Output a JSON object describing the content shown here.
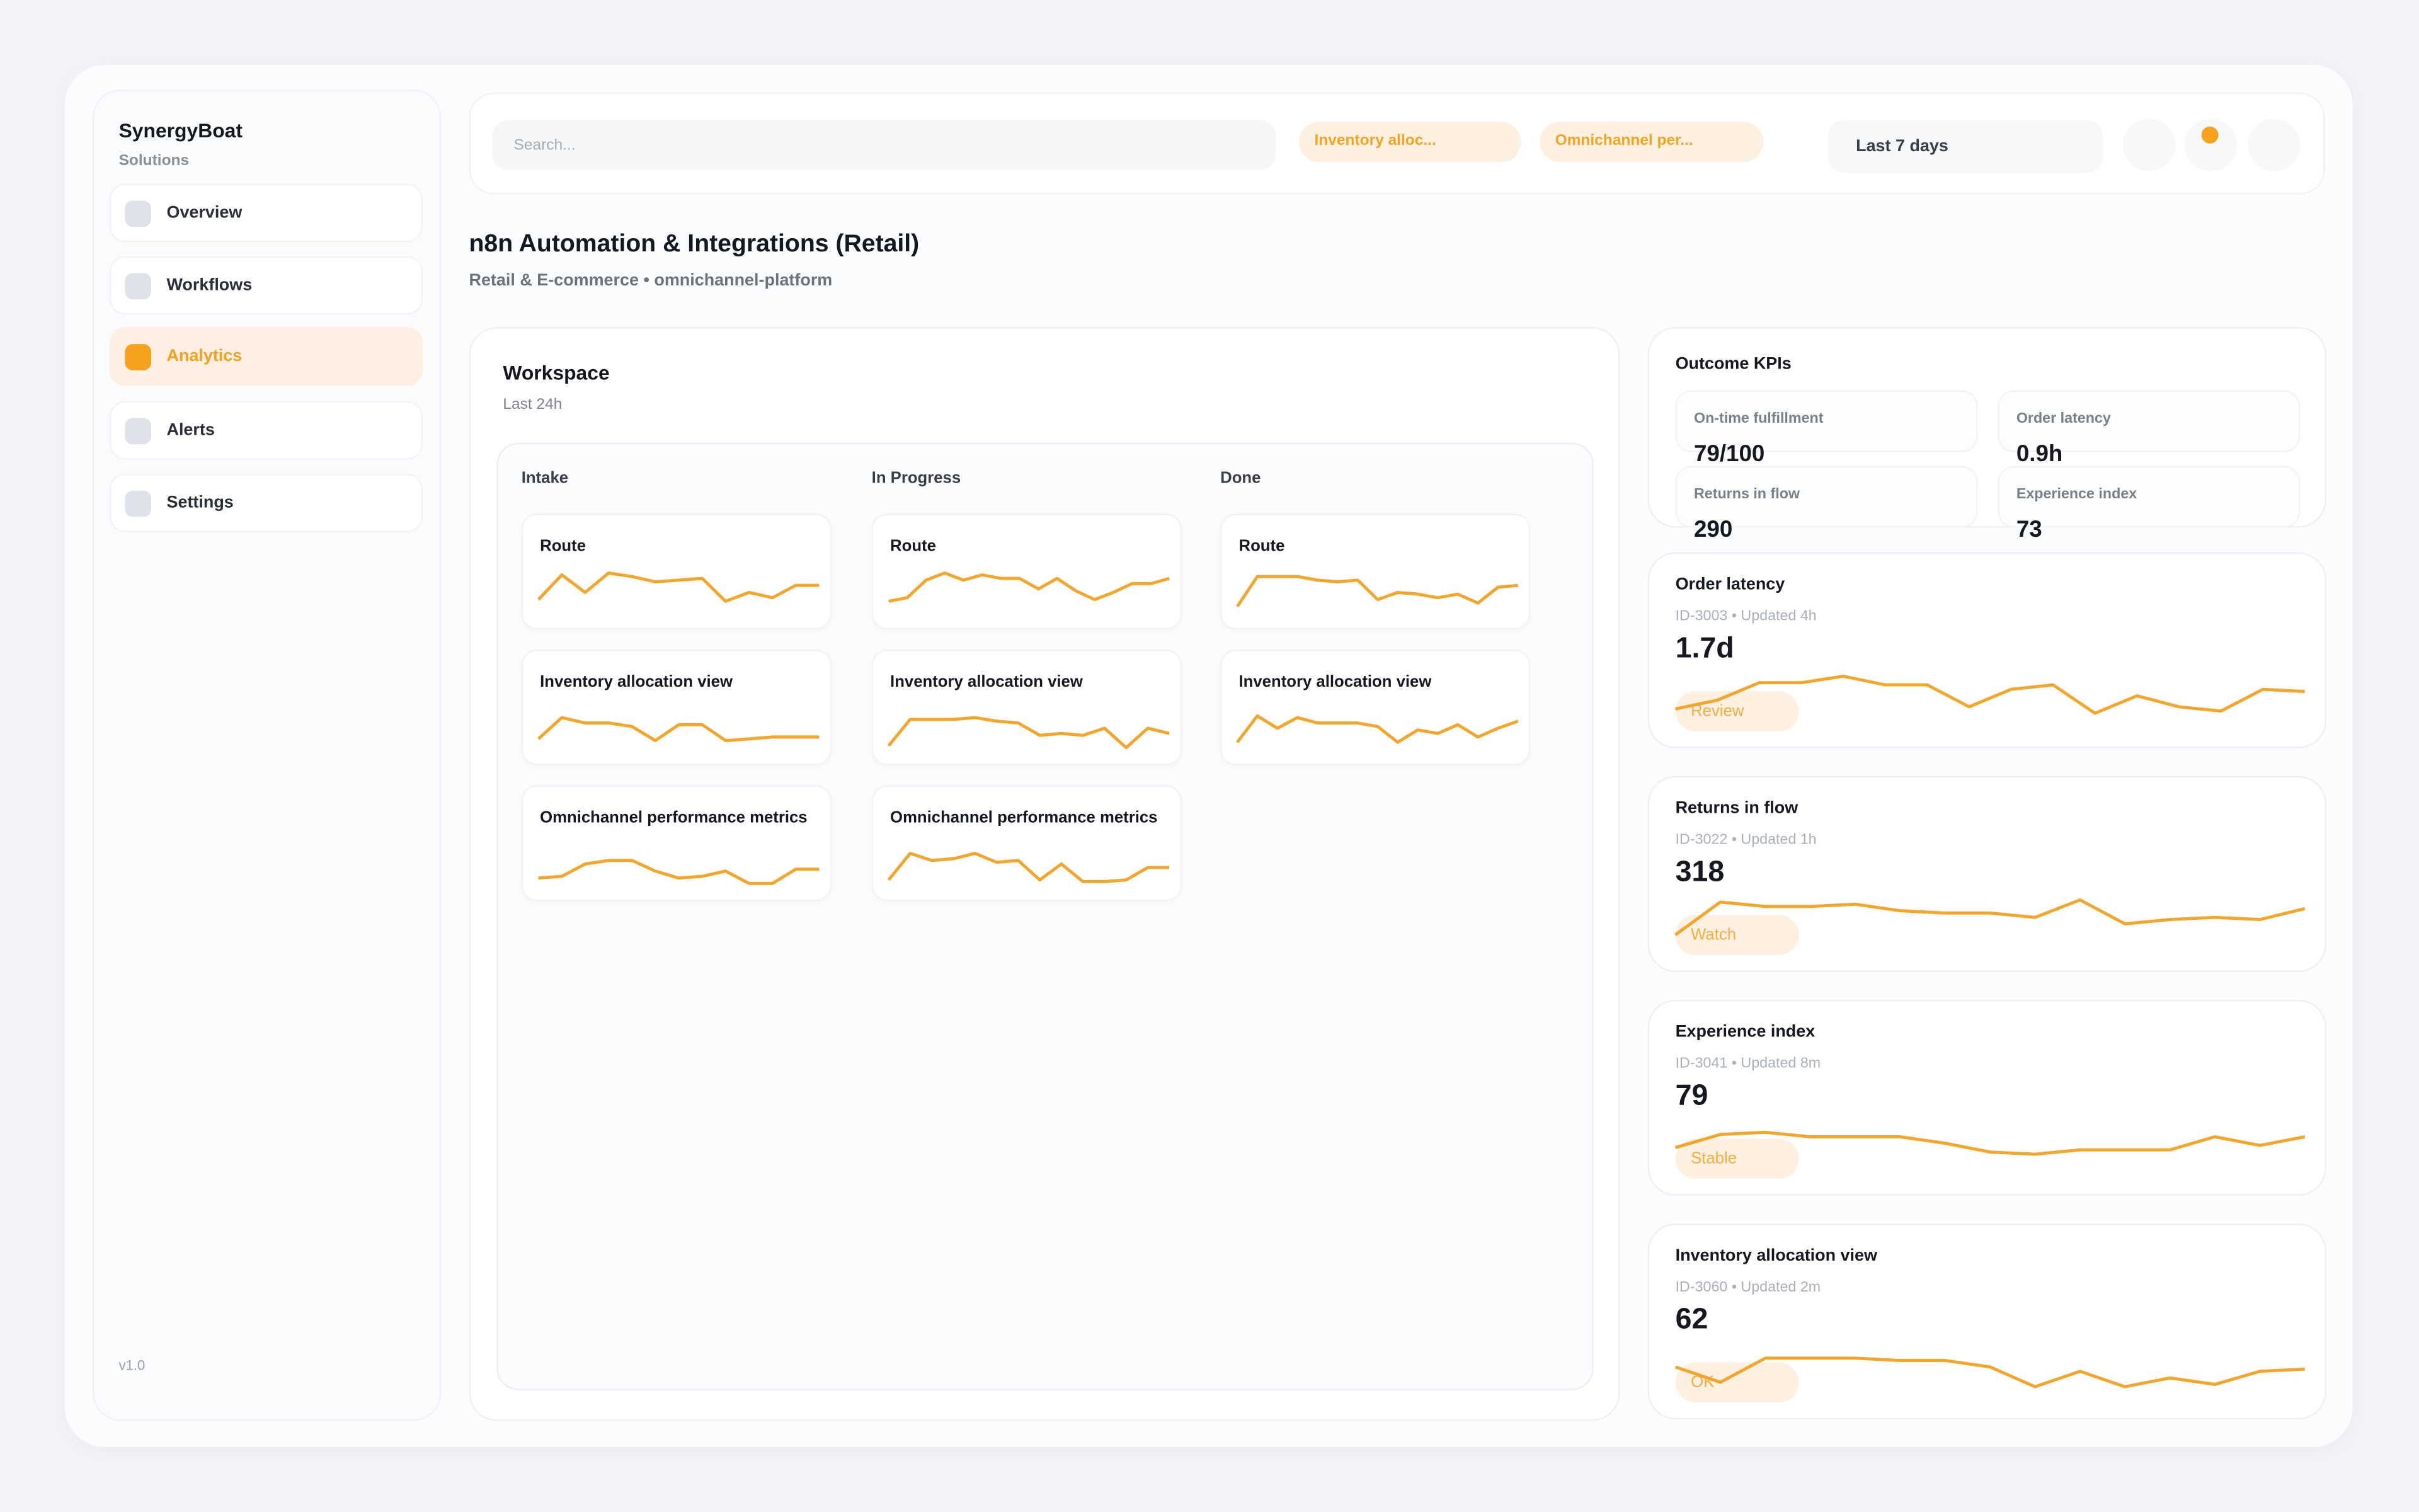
{
  "colors": {
    "accent": "#f6a21e",
    "background": "#f2f3f6"
  },
  "sidebar": {
    "brand": "SynergyBoat",
    "subtitle": "Solutions",
    "version": "v1.0",
    "items": [
      {
        "label": "Overview",
        "active": false
      },
      {
        "label": "Workflows",
        "active": false
      },
      {
        "label": "Analytics",
        "active": true
      },
      {
        "label": "Alerts",
        "active": false
      },
      {
        "label": "Settings",
        "active": false
      }
    ]
  },
  "topbar": {
    "search_placeholder": "Search...",
    "chips": [
      "Inventory alloc...",
      "Omnichannel per..."
    ],
    "range": "Last 7 days",
    "notification_dot": true
  },
  "header": {
    "title": "n8n Automation & Integrations (Retail)",
    "subtitle": "Retail & E-commerce • omnichannel-platform"
  },
  "workspace": {
    "title": "Workspace",
    "subtitle": "Last 24h",
    "columns": [
      {
        "name": "Intake",
        "cards": [
          {
            "label": "Route",
            "spark": [
              10,
              24,
              14,
              25,
              23,
              20,
              21,
              22,
              9,
              14,
              11,
              18,
              18
            ]
          },
          {
            "label": "Inventory allocation view",
            "spark": [
              8,
              20,
              17,
              17,
              15,
              7,
              16,
              16,
              7,
              8,
              9,
              9,
              9
            ]
          },
          {
            "label": "Omnichannel performance metrics",
            "spark": [
              6,
              7,
              14,
              16,
              16,
              10,
              6,
              7,
              10,
              3,
              3,
              11,
              11
            ]
          }
        ]
      },
      {
        "name": "In Progress",
        "cards": [
          {
            "label": "Route",
            "spark": [
              9,
              11,
              21,
              25,
              21,
              24,
              22,
              22,
              16,
              22,
              15,
              10,
              14,
              19,
              19,
              22
            ]
          },
          {
            "label": "Inventory allocation view",
            "spark": [
              4,
              19,
              19,
              19,
              20,
              18,
              17,
              10,
              11,
              10,
              14,
              3,
              14,
              11
            ]
          },
          {
            "label": "Omnichannel performance metrics",
            "spark": [
              5,
              20,
              16,
              17,
              20,
              15,
              16,
              5,
              14,
              4,
              4,
              5,
              12,
              12
            ]
          }
        ]
      },
      {
        "name": "Done",
        "cards": [
          {
            "label": "Route",
            "spark": [
              6,
              23,
              23,
              23,
              21,
              20,
              21,
              10,
              14,
              13,
              11,
              13,
              8,
              17,
              18
            ]
          },
          {
            "label": "Inventory allocation view",
            "spark": [
              6,
              21,
              14,
              20,
              17,
              17,
              17,
              15,
              6,
              13,
              11,
              16,
              9,
              14,
              18
            ]
          }
        ]
      }
    ]
  },
  "kpis": {
    "title": "Outcome KPIs",
    "items": [
      {
        "label": "On-time fulfillment",
        "value": "79/100"
      },
      {
        "label": "Order latency",
        "value": "0.9h"
      },
      {
        "label": "Returns in flow",
        "value": "290"
      },
      {
        "label": "Experience index",
        "value": "73"
      }
    ]
  },
  "metrics": [
    {
      "title": "Order latency",
      "meta": "ID-3003 • Updated 4h",
      "value": "1.7d",
      "badge": "Review",
      "spark": [
        6,
        10,
        18,
        18,
        21,
        17,
        17,
        7,
        15,
        17,
        4,
        12,
        7,
        5,
        15,
        14
      ]
    },
    {
      "title": "Returns in flow",
      "meta": "ID-3022 • Updated 1h",
      "value": "318",
      "badge": "Watch",
      "spark": [
        5,
        20,
        18,
        18,
        19,
        16,
        15,
        15,
        13,
        21,
        10,
        12,
        13,
        12,
        17
      ]
    },
    {
      "title": "Experience index",
      "meta": "ID-3041 • Updated 8m",
      "value": "79",
      "badge": "Stable",
      "spark": [
        10,
        16,
        17,
        15,
        15,
        15,
        12,
        8,
        7,
        9,
        9,
        9,
        15,
        11,
        15
      ]
    },
    {
      "title": "Inventory allocation view",
      "meta": "ID-3060 • Updated 2m",
      "value": "62",
      "badge": "OK",
      "spark": [
        12,
        5,
        16,
        16,
        16,
        15,
        15,
        12,
        3,
        10,
        3,
        7,
        4,
        10,
        11
      ]
    }
  ]
}
